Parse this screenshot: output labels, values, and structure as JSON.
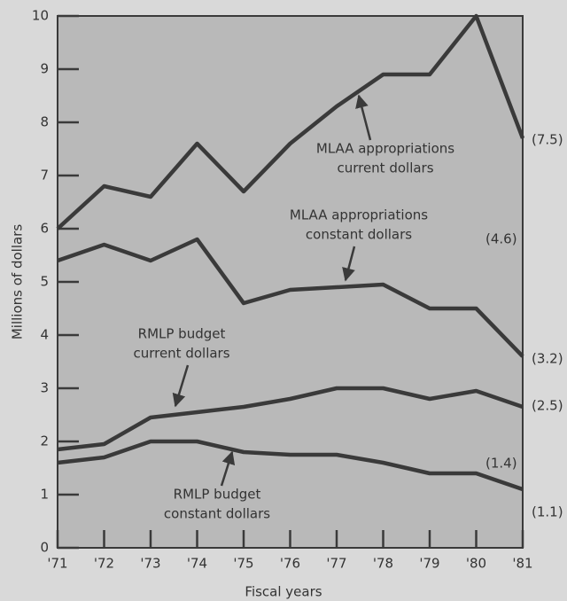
{
  "chart_data": {
    "type": "line",
    "x_label": "Fiscal years",
    "y_label": "Millions of dollars",
    "categories": [
      "'71",
      "'72",
      "'73",
      "'74",
      "'75",
      "'76",
      "'77",
      "'78",
      "'79",
      "'80",
      "'81"
    ],
    "series": [
      {
        "name": "MLAA appropriations current dollars",
        "color": "#3a3a3a",
        "values": [
          6.0,
          6.8,
          6.6,
          7.6,
          6.7,
          7.6,
          8.3,
          8.9,
          8.9,
          10.0,
          7.7
        ]
      },
      {
        "name": "MLAA appropriations constant dollars",
        "color": "#3a3a3a",
        "values": [
          5.4,
          5.7,
          5.4,
          5.8,
          4.6,
          4.85,
          4.9,
          4.95,
          4.5,
          4.5,
          3.6
        ]
      },
      {
        "name": "RMLP budget current dollars",
        "color": "#3a3a3a",
        "values": [
          1.85,
          1.95,
          2.45,
          2.55,
          2.65,
          2.8,
          3.0,
          3.0,
          2.8,
          2.95,
          2.65
        ]
      },
      {
        "name": "RMLP budget constant dollars",
        "color": "#3a3a3a",
        "values": [
          1.6,
          1.7,
          2.0,
          2.0,
          1.8,
          1.75,
          1.75,
          1.6,
          1.4,
          1.4,
          1.1
        ]
      }
    ],
    "annotations": [
      {
        "lines": [
          "MLAA appropriations",
          "current dollars"
        ]
      },
      {
        "lines": [
          "MLAA appropriations",
          "constant dollars"
        ]
      },
      {
        "lines": [
          "RMLP budget",
          "current dollars"
        ]
      },
      {
        "lines": [
          "RMLP budget",
          "constant dollars"
        ]
      }
    ],
    "end_labels": [
      "(7.5)",
      "(4.6)",
      "(3.2)",
      "(2.5)",
      "(1.4)",
      "(1.1)"
    ],
    "ylim": [
      0,
      10
    ],
    "yticks": [
      0,
      1,
      2,
      3,
      4,
      5,
      6,
      7,
      8,
      9,
      10
    ]
  }
}
